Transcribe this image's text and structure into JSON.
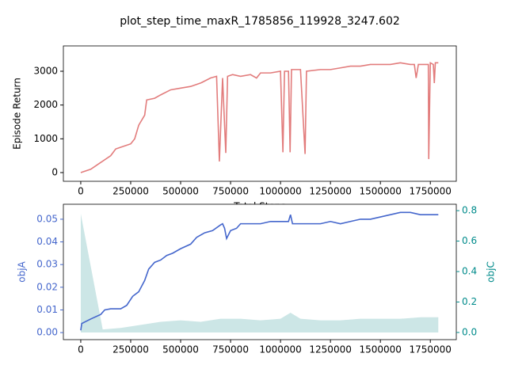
{
  "chart_data": [
    {
      "type": "line",
      "title": "plot_step_time_maxR_1785856_119928_3247.602",
      "xlabel": "Total Steps",
      "ylabel": "Episode Return",
      "xlim": [
        -87000,
        1880000
      ],
      "ylim": [
        -258,
        3750
      ],
      "xticks": [
        0,
        250000,
        500000,
        750000,
        1000000,
        1250000,
        1500000,
        1750000
      ],
      "yticks": [
        0,
        1000,
        2000,
        3000
      ],
      "series": [
        {
          "color": "#e27c7c",
          "x": [
            0,
            50000,
            100000,
            150000,
            175000,
            200000,
            250000,
            270000,
            290000,
            320000,
            330000,
            370000,
            400000,
            450000,
            500000,
            550000,
            600000,
            650000,
            680000,
            694000,
            710000,
            726000,
            735000,
            760000,
            800000,
            850000,
            880000,
            900000,
            950000,
            1000000,
            1012000,
            1020000,
            1040000,
            1048000,
            1055000,
            1070000,
            1100000,
            1123000,
            1130000,
            1200000,
            1250000,
            1300000,
            1350000,
            1400000,
            1450000,
            1500000,
            1550000,
            1600000,
            1650000,
            1670000,
            1679000,
            1690000,
            1740000,
            1742000,
            1750000,
            1765000,
            1770000,
            1775000,
            1790000
          ],
          "values": [
            0,
            100,
            300,
            500,
            700,
            750,
            850,
            1000,
            1400,
            1700,
            2150,
            2200,
            2300,
            2450,
            2500,
            2550,
            2650,
            2800,
            2850,
            330,
            2800,
            580,
            2850,
            2900,
            2850,
            2900,
            2800,
            2950,
            2950,
            3000,
            600,
            3000,
            3000,
            600,
            3050,
            3050,
            3050,
            550,
            3000,
            3050,
            3050,
            3100,
            3150,
            3150,
            3200,
            3200,
            3200,
            3250,
            3200,
            3200,
            2800,
            3200,
            3200,
            400,
            3250,
            3200,
            2650,
            3250,
            3250
          ]
        }
      ]
    },
    {
      "type": "line",
      "ylabel": "objA",
      "y2label": "objC",
      "xlim": [
        -87000,
        1880000
      ],
      "ylim": [
        -0.0031,
        0.0566
      ],
      "y2lim": [
        -0.047,
        0.842
      ],
      "xticks": [
        0,
        250000,
        500000,
        750000,
        1000000,
        1250000,
        1500000,
        1750000
      ],
      "yticks": [
        {
          "value": 0,
          "label": "0.00"
        },
        0.01,
        0.02,
        0.03,
        0.04,
        0.05
      ],
      "y2ticks": [
        {
          "value": 0,
          "label": "0.0"
        },
        0.2,
        0.4,
        0.6,
        0.8
      ],
      "series": [
        {
          "color": "#cce6e6",
          "axis": "y2",
          "fill": true,
          "x": [
            0,
            110000,
            200000,
            300000,
            400000,
            500000,
            600000,
            700000,
            800000,
            900000,
            1000000,
            1050000,
            1100000,
            1200000,
            1300000,
            1400000,
            1500000,
            1600000,
            1700000,
            1790000
          ],
          "values": [
            0.78,
            0.02,
            0.03,
            0.05,
            0.07,
            0.08,
            0.07,
            0.09,
            0.09,
            0.08,
            0.09,
            0.13,
            0.09,
            0.08,
            0.08,
            0.09,
            0.09,
            0.09,
            0.1,
            0.1
          ]
        },
        {
          "color": "#4466cc",
          "axis": "y",
          "x": [
            0,
            5000,
            50000,
            100000,
            120000,
            150000,
            200000,
            230000,
            260000,
            290000,
            320000,
            340000,
            370000,
            400000,
            430000,
            460000,
            500000,
            550000,
            580000,
            620000,
            660000,
            700000,
            710000,
            720000,
            730000,
            750000,
            780000,
            800000,
            850000,
            900000,
            950000,
            1000000,
            1040000,
            1050000,
            1060000,
            1100000,
            1200000,
            1250000,
            1300000,
            1350000,
            1400000,
            1450000,
            1500000,
            1550000,
            1600000,
            1650000,
            1700000,
            1750000,
            1790000
          ],
          "values": [
            0.001,
            0.004,
            0.006,
            0.008,
            0.01,
            0.0105,
            0.0105,
            0.012,
            0.016,
            0.018,
            0.023,
            0.028,
            0.031,
            0.032,
            0.034,
            0.035,
            0.037,
            0.039,
            0.042,
            0.044,
            0.045,
            0.0475,
            0.048,
            0.046,
            0.0415,
            0.045,
            0.046,
            0.048,
            0.048,
            0.048,
            0.049,
            0.049,
            0.049,
            0.052,
            0.048,
            0.048,
            0.048,
            0.049,
            0.048,
            0.049,
            0.05,
            0.05,
            0.051,
            0.052,
            0.053,
            0.053,
            0.052,
            0.052,
            0.052
          ]
        }
      ]
    }
  ]
}
